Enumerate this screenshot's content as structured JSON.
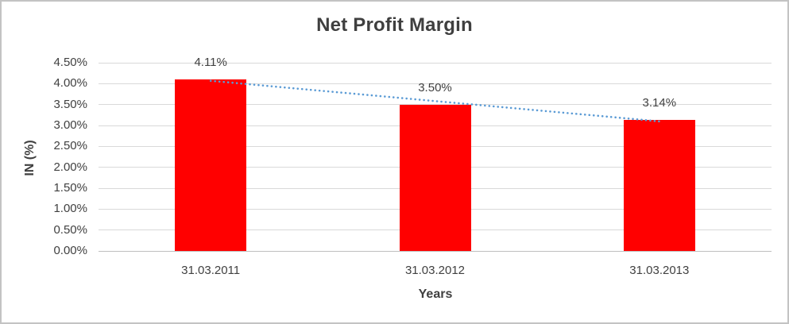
{
  "chart_data": {
    "type": "bar",
    "title": "Net Profit Margin",
    "categories": [
      "31.03.2011",
      "31.03.2012",
      "31.03.2013"
    ],
    "values": [
      4.11,
      3.5,
      3.14
    ],
    "data_labels": [
      "4.11%",
      "3.50%",
      "3.14%"
    ],
    "xlabel": "Years",
    "ylabel": "IN (%)",
    "ylim": [
      0,
      4.5
    ],
    "ytick_step": 0.5,
    "ytick_labels": [
      "0.00%",
      "0.50%",
      "1.00%",
      "1.50%",
      "2.00%",
      "2.50%",
      "3.00%",
      "3.50%",
      "4.00%",
      "4.50%"
    ],
    "grid": true,
    "legend_position": "none",
    "bar_color": "#ff0000",
    "trendline": {
      "type": "linear",
      "style": "dotted",
      "color": "#5b9bd5"
    },
    "colors": {
      "title_text": "#3f3f3f",
      "axis_text": "#404040",
      "gridline": "#d9d9d9",
      "axis_line": "#bfbfbf",
      "frame_border": "#c3c3c3",
      "background": "#ffffff"
    }
  }
}
